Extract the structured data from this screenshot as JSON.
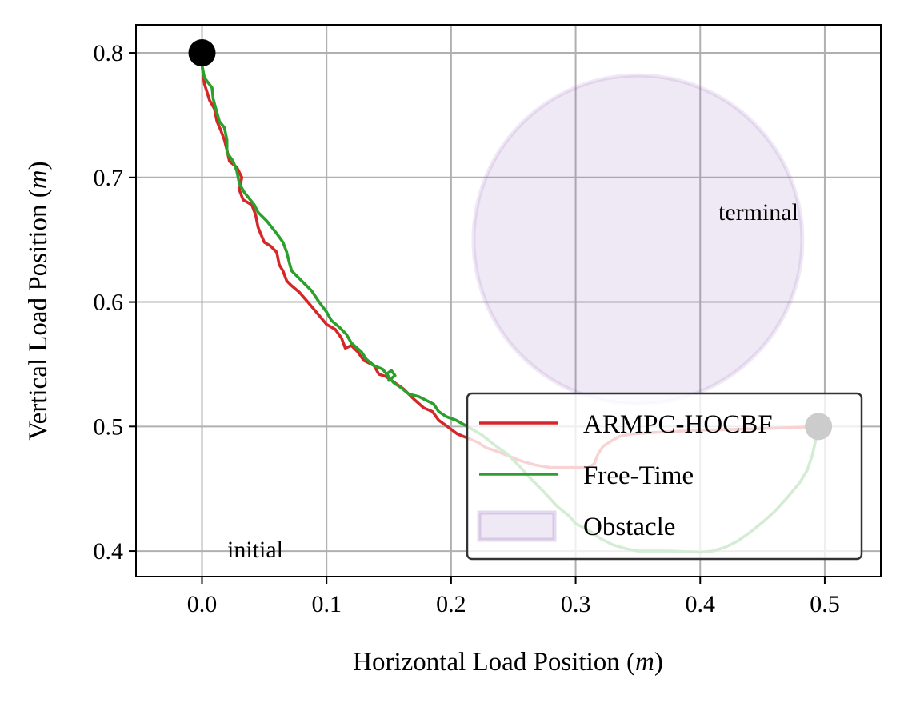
{
  "chart_data": {
    "type": "line",
    "title": "",
    "xlabel": "Horizontal Load Position (",
    "xlabel_unit": "m",
    "ylabel": "Vertical Load Position (",
    "ylabel_unit": "m",
    "label_close": ")",
    "xlim": [
      -0.053,
      0.545
    ],
    "ylim": [
      0.8225,
      0.3795
    ],
    "y_inverted": true,
    "xticks": [
      0.0,
      0.1,
      0.2,
      0.3,
      0.4,
      0.5
    ],
    "xtick_labels": [
      "0.0",
      "0.1",
      "0.2",
      "0.3",
      "0.4",
      "0.5"
    ],
    "yticks": [
      0.4,
      0.5,
      0.6,
      0.7,
      0.8
    ],
    "ytick_labels": [
      "0.4",
      "0.5",
      "0.6",
      "0.7",
      "0.8"
    ],
    "grid": true,
    "legend_position": "lower-right",
    "series": [
      {
        "name": "ARMPC-HOCBF",
        "color": "#d62728",
        "points": [
          [
            0.0,
            0.79
          ],
          [
            0.002,
            0.775
          ],
          [
            0.006,
            0.762
          ],
          [
            0.01,
            0.755
          ],
          [
            0.012,
            0.745
          ],
          [
            0.015,
            0.738
          ],
          [
            0.018,
            0.73
          ],
          [
            0.02,
            0.722
          ],
          [
            0.022,
            0.713
          ],
          [
            0.028,
            0.708
          ],
          [
            0.032,
            0.7
          ],
          [
            0.03,
            0.69
          ],
          [
            0.033,
            0.682
          ],
          [
            0.04,
            0.678
          ],
          [
            0.043,
            0.67
          ],
          [
            0.045,
            0.66
          ],
          [
            0.047,
            0.655
          ],
          [
            0.05,
            0.648
          ],
          [
            0.055,
            0.645
          ],
          [
            0.06,
            0.64
          ],
          [
            0.062,
            0.63
          ],
          [
            0.065,
            0.625
          ],
          [
            0.068,
            0.617
          ],
          [
            0.072,
            0.613
          ],
          [
            0.078,
            0.608
          ],
          [
            0.085,
            0.6
          ],
          [
            0.09,
            0.594
          ],
          [
            0.095,
            0.588
          ],
          [
            0.1,
            0.582
          ],
          [
            0.107,
            0.578
          ],
          [
            0.112,
            0.571
          ],
          [
            0.115,
            0.563
          ],
          [
            0.12,
            0.565
          ],
          [
            0.125,
            0.56
          ],
          [
            0.13,
            0.553
          ],
          [
            0.138,
            0.549
          ],
          [
            0.142,
            0.542
          ],
          [
            0.148,
            0.54
          ],
          [
            0.155,
            0.535
          ],
          [
            0.162,
            0.53
          ],
          [
            0.17,
            0.522
          ],
          [
            0.178,
            0.515
          ],
          [
            0.185,
            0.512
          ],
          [
            0.19,
            0.505
          ],
          [
            0.197,
            0.5
          ],
          [
            0.205,
            0.494
          ],
          [
            0.215,
            0.49
          ],
          [
            0.222,
            0.487
          ],
          [
            0.228,
            0.483
          ],
          [
            0.237,
            0.48
          ],
          [
            0.247,
            0.476
          ],
          [
            0.257,
            0.472
          ],
          [
            0.268,
            0.469
          ],
          [
            0.28,
            0.467
          ],
          [
            0.3,
            0.467
          ],
          [
            0.31,
            0.467
          ],
          [
            0.315,
            0.47
          ],
          [
            0.318,
            0.478
          ],
          [
            0.322,
            0.484
          ],
          [
            0.328,
            0.488
          ],
          [
            0.335,
            0.492
          ],
          [
            0.345,
            0.494
          ],
          [
            0.36,
            0.495
          ],
          [
            0.38,
            0.496
          ],
          [
            0.4,
            0.497
          ],
          [
            0.44,
            0.498
          ],
          [
            0.47,
            0.499
          ],
          [
            0.495,
            0.5
          ]
        ]
      },
      {
        "name": "Free-Time",
        "color": "#2ca02c",
        "points": [
          [
            0.0,
            0.79
          ],
          [
            0.002,
            0.78
          ],
          [
            0.008,
            0.772
          ],
          [
            0.009,
            0.763
          ],
          [
            0.012,
            0.752
          ],
          [
            0.014,
            0.745
          ],
          [
            0.018,
            0.74
          ],
          [
            0.02,
            0.73
          ],
          [
            0.02,
            0.72
          ],
          [
            0.025,
            0.713
          ],
          [
            0.028,
            0.705
          ],
          [
            0.03,
            0.695
          ],
          [
            0.034,
            0.688
          ],
          [
            0.038,
            0.683
          ],
          [
            0.042,
            0.678
          ],
          [
            0.045,
            0.672
          ],
          [
            0.052,
            0.665
          ],
          [
            0.056,
            0.66
          ],
          [
            0.06,
            0.655
          ],
          [
            0.065,
            0.648
          ],
          [
            0.068,
            0.64
          ],
          [
            0.07,
            0.632
          ],
          [
            0.072,
            0.625
          ],
          [
            0.077,
            0.62
          ],
          [
            0.082,
            0.615
          ],
          [
            0.088,
            0.609
          ],
          [
            0.094,
            0.6
          ],
          [
            0.1,
            0.592
          ],
          [
            0.104,
            0.585
          ],
          [
            0.11,
            0.58
          ],
          [
            0.116,
            0.574
          ],
          [
            0.12,
            0.567
          ],
          [
            0.128,
            0.56
          ],
          [
            0.132,
            0.554
          ],
          [
            0.138,
            0.549
          ],
          [
            0.145,
            0.546
          ],
          [
            0.15,
            0.54
          ],
          [
            0.15,
            0.537
          ],
          [
            0.155,
            0.541
          ],
          [
            0.152,
            0.545
          ],
          [
            0.148,
            0.542
          ],
          [
            0.154,
            0.535
          ],
          [
            0.16,
            0.531
          ],
          [
            0.166,
            0.526
          ],
          [
            0.174,
            0.524
          ],
          [
            0.182,
            0.52
          ],
          [
            0.186,
            0.518
          ],
          [
            0.19,
            0.512
          ],
          [
            0.196,
            0.508
          ],
          [
            0.204,
            0.505
          ],
          [
            0.213,
            0.5
          ],
          [
            0.225,
            0.493
          ],
          [
            0.235,
            0.485
          ],
          [
            0.245,
            0.478
          ],
          [
            0.255,
            0.468
          ],
          [
            0.265,
            0.457
          ],
          [
            0.275,
            0.447
          ],
          [
            0.285,
            0.436
          ],
          [
            0.295,
            0.428
          ],
          [
            0.3,
            0.422
          ],
          [
            0.31,
            0.417
          ],
          [
            0.32,
            0.41
          ],
          [
            0.33,
            0.405
          ],
          [
            0.34,
            0.402
          ],
          [
            0.35,
            0.4
          ],
          [
            0.375,
            0.4
          ],
          [
            0.4,
            0.399
          ],
          [
            0.41,
            0.4
          ],
          [
            0.42,
            0.403
          ],
          [
            0.43,
            0.408
          ],
          [
            0.44,
            0.415
          ],
          [
            0.45,
            0.423
          ],
          [
            0.46,
            0.432
          ],
          [
            0.47,
            0.443
          ],
          [
            0.48,
            0.455
          ],
          [
            0.486,
            0.465
          ],
          [
            0.49,
            0.477
          ],
          [
            0.493,
            0.49
          ],
          [
            0.495,
            0.5
          ]
        ]
      }
    ],
    "obstacle": {
      "name": "Obstacle",
      "color": "#9467bd",
      "center": [
        0.35,
        0.65
      ],
      "radius_x": 0.132,
      "radius_y": 0.132
    },
    "markers": [
      {
        "label": "initial",
        "x": 0.0,
        "y": 0.8
      },
      {
        "label": "terminal",
        "x": 0.495,
        "y": 0.5
      }
    ]
  }
}
